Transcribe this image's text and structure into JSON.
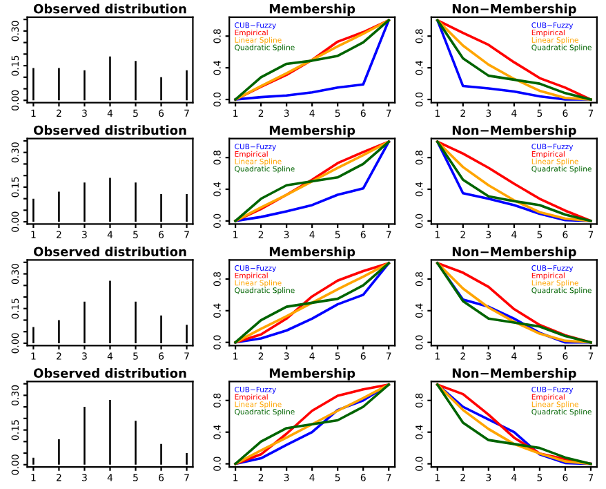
{
  "chart_data": [
    {
      "type": "bar",
      "title": "Observed distribution",
      "x": [
        1,
        2,
        3,
        4,
        5,
        6,
        7
      ],
      "values": [
        0.14,
        0.14,
        0.13,
        0.19,
        0.17,
        0.1,
        0.13
      ],
      "color": "#000000",
      "xlim": [
        0.76,
        7.24
      ],
      "xticks": [
        1,
        2,
        3,
        4,
        5,
        6,
        7
      ],
      "ylim": [
        -0.01,
        0.36
      ],
      "yticks": [
        {
          "value": 0,
          "label": "0.00"
        },
        {
          "value": 0.05,
          "label": null
        },
        {
          "value": 0.1,
          "label": null
        },
        {
          "value": 0.15,
          "label": "0.15"
        },
        {
          "value": 0.2,
          "label": null
        },
        {
          "value": 0.25,
          "label": null
        },
        {
          "value": 0.3,
          "label": "0.30"
        },
        {
          "value": 0.35,
          "label": null
        }
      ]
    },
    {
      "type": "bar",
      "title": "Observed distribution",
      "x": [
        1,
        2,
        3,
        4,
        5,
        6,
        7
      ],
      "values": [
        0.1,
        0.13,
        0.17,
        0.19,
        0.17,
        0.12,
        0.12
      ],
      "color": "#000000",
      "xlim": [
        0.76,
        7.24
      ],
      "xticks": [
        1,
        2,
        3,
        4,
        5,
        6,
        7
      ],
      "ylim": [
        -0.01,
        0.36
      ],
      "yticks": [
        {
          "value": 0,
          "label": "0.00"
        },
        {
          "value": 0.05,
          "label": null
        },
        {
          "value": 0.1,
          "label": null
        },
        {
          "value": 0.15,
          "label": "0.15"
        },
        {
          "value": 0.2,
          "label": null
        },
        {
          "value": 0.25,
          "label": null
        },
        {
          "value": 0.3,
          "label": "0.30"
        },
        {
          "value": 0.35,
          "label": null
        }
      ]
    },
    {
      "type": "bar",
      "title": "Observed distribution",
      "x": [
        1,
        2,
        3,
        4,
        5,
        6,
        7
      ],
      "values": [
        0.07,
        0.1,
        0.18,
        0.27,
        0.18,
        0.12,
        0.08
      ],
      "color": "#000000",
      "xlim": [
        0.76,
        7.24
      ],
      "xticks": [
        1,
        2,
        3,
        4,
        5,
        6,
        7
      ],
      "ylim": [
        -0.01,
        0.36
      ],
      "yticks": [
        {
          "value": 0,
          "label": "0.00"
        },
        {
          "value": 0.05,
          "label": null
        },
        {
          "value": 0.1,
          "label": null
        },
        {
          "value": 0.15,
          "label": "0.15"
        },
        {
          "value": 0.2,
          "label": null
        },
        {
          "value": 0.25,
          "label": null
        },
        {
          "value": 0.3,
          "label": "0.30"
        },
        {
          "value": 0.35,
          "label": null
        }
      ]
    },
    {
      "type": "bar",
      "title": "Observed distribution",
      "x": [
        1,
        2,
        3,
        4,
        5,
        6,
        7
      ],
      "values": [
        0.03,
        0.11,
        0.25,
        0.28,
        0.19,
        0.09,
        0.05
      ],
      "color": "#000000",
      "xlim": [
        0.76,
        7.24
      ],
      "xticks": [
        1,
        2,
        3,
        4,
        5,
        6,
        7
      ],
      "ylim": [
        -0.01,
        0.36
      ],
      "yticks": [
        {
          "value": 0,
          "label": "0.00"
        },
        {
          "value": 0.05,
          "label": null
        },
        {
          "value": 0.1,
          "label": null
        },
        {
          "value": 0.15,
          "label": "0.15"
        },
        {
          "value": 0.2,
          "label": null
        },
        {
          "value": 0.25,
          "label": null
        },
        {
          "value": 0.3,
          "label": "0.30"
        },
        {
          "value": 0.35,
          "label": null
        }
      ]
    },
    {
      "type": "line",
      "title": "Membership",
      "x": [
        1,
        2,
        3,
        4,
        5,
        6,
        7
      ],
      "xlim": [
        0.76,
        7.24
      ],
      "xticks": [
        1,
        2,
        3,
        4,
        5,
        6,
        7
      ],
      "ylim": [
        -0.04,
        1.04
      ],
      "yticks": [
        {
          "value": 0,
          "label": "0.0"
        },
        {
          "value": 0.4,
          "label": "0.4"
        },
        {
          "value": 0.8,
          "label": "0.8"
        }
      ],
      "legend": "top left",
      "series": [
        {
          "name": "CUB−Fuzzy",
          "color": "#0000ff",
          "values": [
            0,
            0.03,
            0.05,
            0.09,
            0.15,
            0.19,
            1
          ]
        },
        {
          "name": "Empirical",
          "color": "#ff0000",
          "values": [
            0,
            0.16,
            0.31,
            0.5,
            0.73,
            0.85,
            1
          ]
        },
        {
          "name": "Linear Spline",
          "color": "#ffa500",
          "values": [
            0,
            0.17,
            0.33,
            0.5,
            0.67,
            0.83,
            1
          ]
        },
        {
          "name": "Quadratic Spline",
          "color": "#006400",
          "values": [
            0,
            0.28,
            0.45,
            0.49,
            0.55,
            0.72,
            1
          ]
        }
      ]
    },
    {
      "type": "line",
      "title": "Membership",
      "x": [
        1,
        2,
        3,
        4,
        5,
        6,
        7
      ],
      "xlim": [
        0.76,
        7.24
      ],
      "xticks": [
        1,
        2,
        3,
        4,
        5,
        6,
        7
      ],
      "ylim": [
        -0.04,
        1.04
      ],
      "yticks": [
        {
          "value": 0,
          "label": "0.0"
        },
        {
          "value": 0.4,
          "label": "0.4"
        },
        {
          "value": 0.8,
          "label": "0.8"
        }
      ],
      "legend": "top left",
      "series": [
        {
          "name": "CUB−Fuzzy",
          "color": "#0000ff",
          "values": [
            0,
            0.05,
            0.12,
            0.2,
            0.33,
            0.41,
            1
          ]
        },
        {
          "name": "Empirical",
          "color": "#ff0000",
          "values": [
            0,
            0.15,
            0.33,
            0.52,
            0.73,
            0.87,
            1
          ]
        },
        {
          "name": "Linear Spline",
          "color": "#ffa500",
          "values": [
            0,
            0.17,
            0.33,
            0.5,
            0.67,
            0.83,
            1
          ]
        },
        {
          "name": "Quadratic Spline",
          "color": "#006400",
          "values": [
            0,
            0.28,
            0.45,
            0.5,
            0.55,
            0.72,
            1
          ]
        }
      ]
    },
    {
      "type": "line",
      "title": "Membership",
      "x": [
        1,
        2,
        3,
        4,
        5,
        6,
        7
      ],
      "xlim": [
        0.76,
        7.24
      ],
      "xticks": [
        1,
        2,
        3,
        4,
        5,
        6,
        7
      ],
      "ylim": [
        -0.04,
        1.04
      ],
      "yticks": [
        {
          "value": 0,
          "label": "0.0"
        },
        {
          "value": 0.4,
          "label": "0.4"
        },
        {
          "value": 0.8,
          "label": "0.8"
        }
      ],
      "legend": "top left",
      "series": [
        {
          "name": "CUB−Fuzzy",
          "color": "#0000ff",
          "values": [
            0,
            0.05,
            0.15,
            0.3,
            0.48,
            0.6,
            1
          ]
        },
        {
          "name": "Empirical",
          "color": "#ff0000",
          "values": [
            0,
            0.1,
            0.3,
            0.58,
            0.78,
            0.9,
            1
          ]
        },
        {
          "name": "Linear Spline",
          "color": "#ffa500",
          "values": [
            0,
            0.17,
            0.33,
            0.5,
            0.67,
            0.83,
            1
          ]
        },
        {
          "name": "Quadratic Spline",
          "color": "#006400",
          "values": [
            0,
            0.28,
            0.45,
            0.5,
            0.55,
            0.72,
            1
          ]
        }
      ]
    },
    {
      "type": "line",
      "title": "Membership",
      "x": [
        1,
        2,
        3,
        4,
        5,
        6,
        7
      ],
      "xlim": [
        0.76,
        7.24
      ],
      "xticks": [
        1,
        2,
        3,
        4,
        5,
        6,
        7
      ],
      "ylim": [
        -0.04,
        1.04
      ],
      "yticks": [
        {
          "value": 0,
          "label": "0.0"
        },
        {
          "value": 0.4,
          "label": "0.4"
        },
        {
          "value": 0.8,
          "label": "0.8"
        }
      ],
      "legend": "top left",
      "series": [
        {
          "name": "CUB−Fuzzy",
          "color": "#0000ff",
          "values": [
            0,
            0.07,
            0.24,
            0.4,
            0.68,
            0.8,
            1
          ]
        },
        {
          "name": "Empirical",
          "color": "#ff0000",
          "values": [
            0,
            0.12,
            0.38,
            0.67,
            0.86,
            0.94,
            1
          ]
        },
        {
          "name": "Linear Spline",
          "color": "#ffa500",
          "values": [
            0,
            0.17,
            0.33,
            0.5,
            0.67,
            0.83,
            1
          ]
        },
        {
          "name": "Quadratic Spline",
          "color": "#006400",
          "values": [
            0,
            0.28,
            0.45,
            0.5,
            0.55,
            0.72,
            1
          ]
        }
      ]
    },
    {
      "type": "line",
      "title": "Non−Membership",
      "x": [
        1,
        2,
        3,
        4,
        5,
        6,
        7
      ],
      "xlim": [
        0.76,
        7.24
      ],
      "xticks": [
        1,
        2,
        3,
        4,
        5,
        6,
        7
      ],
      "ylim": [
        -0.04,
        1.04
      ],
      "yticks": [
        {
          "value": 0,
          "label": "0.0"
        },
        {
          "value": 0.4,
          "label": "0.4"
        },
        {
          "value": 0.8,
          "label": "0.8"
        }
      ],
      "legend": "top right",
      "series": [
        {
          "name": "CUB−Fuzzy",
          "color": "#0000ff",
          "values": [
            1,
            0.17,
            0.14,
            0.1,
            0.04,
            0,
            0
          ]
        },
        {
          "name": "Empirical",
          "color": "#ff0000",
          "values": [
            1,
            0.84,
            0.69,
            0.47,
            0.27,
            0.15,
            0
          ]
        },
        {
          "name": "Linear Spline",
          "color": "#ffa500",
          "values": [
            1,
            0.68,
            0.44,
            0.26,
            0.11,
            0.02,
            0
          ]
        },
        {
          "name": "Quadratic Spline",
          "color": "#006400",
          "values": [
            1,
            0.52,
            0.3,
            0.25,
            0.2,
            0.08,
            0
          ]
        }
      ]
    },
    {
      "type": "line",
      "title": "Non−Membership",
      "x": [
        1,
        2,
        3,
        4,
        5,
        6,
        7
      ],
      "xlim": [
        0.76,
        7.24
      ],
      "xticks": [
        1,
        2,
        3,
        4,
        5,
        6,
        7
      ],
      "ylim": [
        -0.04,
        1.04
      ],
      "yticks": [
        {
          "value": 0,
          "label": "0.0"
        },
        {
          "value": 0.4,
          "label": "0.4"
        },
        {
          "value": 0.8,
          "label": "0.8"
        }
      ],
      "legend": "top right",
      "series": [
        {
          "name": "CUB−Fuzzy",
          "color": "#0000ff",
          "values": [
            1,
            0.35,
            0.28,
            0.2,
            0.09,
            0.01,
            0
          ]
        },
        {
          "name": "Empirical",
          "color": "#ff0000",
          "values": [
            1,
            0.85,
            0.67,
            0.47,
            0.28,
            0.13,
            0
          ]
        },
        {
          "name": "Linear Spline",
          "color": "#ffa500",
          "values": [
            1,
            0.68,
            0.45,
            0.26,
            0.11,
            0.03,
            0
          ]
        },
        {
          "name": "Quadratic Spline",
          "color": "#006400",
          "values": [
            1,
            0.52,
            0.31,
            0.25,
            0.2,
            0.08,
            0
          ]
        }
      ]
    },
    {
      "type": "line",
      "title": "Non−Membership",
      "x": [
        1,
        2,
        3,
        4,
        5,
        6,
        7
      ],
      "xlim": [
        0.76,
        7.24
      ],
      "xticks": [
        1,
        2,
        3,
        4,
        5,
        6,
        7
      ],
      "ylim": [
        -0.04,
        1.04
      ],
      "yticks": [
        {
          "value": 0,
          "label": "0.0"
        },
        {
          "value": 0.4,
          "label": "0.4"
        },
        {
          "value": 0.8,
          "label": "0.8"
        }
      ],
      "legend": "top right",
      "series": [
        {
          "name": "CUB−Fuzzy",
          "color": "#0000ff",
          "values": [
            1,
            0.54,
            0.45,
            0.3,
            0.12,
            0,
            0
          ]
        },
        {
          "name": "Empirical",
          "color": "#ff0000",
          "values": [
            1,
            0.88,
            0.7,
            0.42,
            0.22,
            0.09,
            0
          ]
        },
        {
          "name": "Linear Spline",
          "color": "#ffa500",
          "values": [
            1,
            0.68,
            0.44,
            0.26,
            0.11,
            0.02,
            0
          ]
        },
        {
          "name": "Quadratic Spline",
          "color": "#006400",
          "values": [
            1,
            0.52,
            0.3,
            0.25,
            0.2,
            0.08,
            0
          ]
        }
      ]
    },
    {
      "type": "line",
      "title": "Non−Membership",
      "x": [
        1,
        2,
        3,
        4,
        5,
        6,
        7
      ],
      "xlim": [
        0.76,
        7.24
      ],
      "xticks": [
        1,
        2,
        3,
        4,
        5,
        6,
        7
      ],
      "ylim": [
        -0.04,
        1.04
      ],
      "yticks": [
        {
          "value": 0,
          "label": "0.0"
        },
        {
          "value": 0.4,
          "label": "0.4"
        },
        {
          "value": 0.8,
          "label": "0.8"
        }
      ],
      "legend": "top right",
      "series": [
        {
          "name": "CUB−Fuzzy",
          "color": "#0000ff",
          "values": [
            1,
            0.72,
            0.56,
            0.4,
            0.12,
            0.01,
            0
          ]
        },
        {
          "name": "Empirical",
          "color": "#ff0000",
          "values": [
            1,
            0.88,
            0.62,
            0.33,
            0.13,
            0.06,
            0
          ]
        },
        {
          "name": "Linear Spline",
          "color": "#ffa500",
          "values": [
            1,
            0.68,
            0.44,
            0.25,
            0.13,
            0.03,
            0
          ]
        },
        {
          "name": "Quadratic Spline",
          "color": "#006400",
          "values": [
            1,
            0.52,
            0.3,
            0.25,
            0.2,
            0.08,
            0
          ]
        }
      ]
    }
  ]
}
